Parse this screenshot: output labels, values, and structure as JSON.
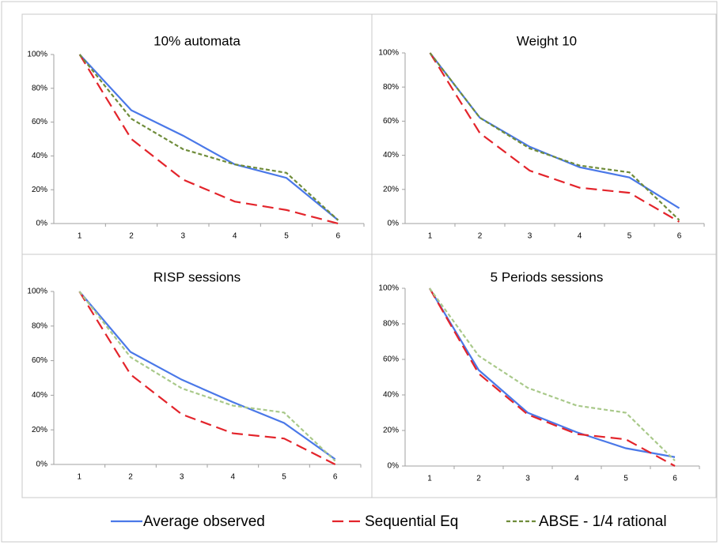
{
  "chart_data": [
    {
      "type": "line",
      "title": "10% automata",
      "categories": [
        "1",
        "2",
        "3",
        "4",
        "5",
        "6"
      ],
      "ylim": [
        0,
        100
      ],
      "yticks": [
        {
          "value": 0,
          "label": "0%"
        },
        {
          "value": 20,
          "label": "20%"
        },
        {
          "value": 40,
          "label": "40%"
        },
        {
          "value": 60,
          "label": "60%"
        },
        {
          "value": 80,
          "label": "80%"
        },
        {
          "value": 100,
          "label": "100%"
        }
      ],
      "grid": false,
      "series": [
        {
          "name": "Average observed",
          "color": "#4a78e8",
          "style": "solid",
          "values": [
            100,
            67,
            52,
            35,
            27,
            2
          ]
        },
        {
          "name": "Sequential Eq",
          "color": "#e3242b",
          "style": "dashed",
          "values": [
            100,
            50,
            26,
            13,
            8,
            0
          ]
        },
        {
          "name": "ABSE - 1/4 rational",
          "color": "#6f8c3a",
          "style": "dotted",
          "values": [
            100,
            62,
            44,
            35,
            30,
            2
          ]
        }
      ]
    },
    {
      "type": "line",
      "title": "Weight 10",
      "categories": [
        "1",
        "2",
        "3",
        "4",
        "5",
        "6"
      ],
      "ylim": [
        0,
        100
      ],
      "yticks": [
        {
          "value": 0,
          "label": "0%"
        },
        {
          "value": 20,
          "label": "20%"
        },
        {
          "value": 40,
          "label": "40%"
        },
        {
          "value": 60,
          "label": "60%"
        },
        {
          "value": 80,
          "label": "80%"
        },
        {
          "value": 100,
          "label": "100%"
        }
      ],
      "grid": false,
      "series": [
        {
          "name": "Average observed",
          "color": "#4a78e8",
          "style": "solid",
          "values": [
            100,
            62,
            45,
            33,
            27,
            9
          ]
        },
        {
          "name": "Sequential Eq",
          "color": "#e3242b",
          "style": "dashed",
          "values": [
            100,
            53,
            31,
            21,
            18,
            1
          ]
        },
        {
          "name": "ABSE - 1/4 rational",
          "color": "#6f8c3a",
          "style": "dotted",
          "values": [
            100,
            62,
            44,
            34,
            30,
            2
          ]
        }
      ]
    },
    {
      "type": "line",
      "title": "RISP sessions",
      "categories": [
        "1",
        "2",
        "3",
        "4",
        "5",
        "6"
      ],
      "ylim": [
        0,
        100
      ],
      "yticks": [
        {
          "value": 0,
          "label": "0%"
        },
        {
          "value": 20,
          "label": "20%"
        },
        {
          "value": 40,
          "label": "40%"
        },
        {
          "value": 60,
          "label": "60%"
        },
        {
          "value": 80,
          "label": "80%"
        },
        {
          "value": 100,
          "label": "100%"
        }
      ],
      "grid": false,
      "series": [
        {
          "name": "Average observed",
          "color": "#4a78e8",
          "style": "solid",
          "values": [
            100,
            65,
            49,
            36,
            24,
            3
          ]
        },
        {
          "name": "Sequential Eq",
          "color": "#e3242b",
          "style": "dashed",
          "values": [
            100,
            52,
            29,
            18,
            15,
            0
          ]
        },
        {
          "name": "ABSE - 1/4 rational",
          "color": "#a9c98a",
          "style": "dotted",
          "values": [
            100,
            62,
            44,
            34,
            30,
            2
          ]
        }
      ]
    },
    {
      "type": "line",
      "title": "5 Periods sessions",
      "categories": [
        "1",
        "2",
        "3",
        "4",
        "5",
        "6"
      ],
      "ylim": [
        0,
        100
      ],
      "yticks": [
        {
          "value": 0,
          "label": "0%"
        },
        {
          "value": 20,
          "label": "20%"
        },
        {
          "value": 40,
          "label": "40%"
        },
        {
          "value": 60,
          "label": "60%"
        },
        {
          "value": 80,
          "label": "80%"
        },
        {
          "value": 100,
          "label": "100%"
        }
      ],
      "grid": false,
      "series": [
        {
          "name": "Average observed",
          "color": "#4a78e8",
          "style": "solid",
          "values": [
            100,
            54,
            30,
            19,
            10,
            5
          ]
        },
        {
          "name": "Sequential Eq",
          "color": "#e3242b",
          "style": "dashed",
          "values": [
            100,
            52,
            29,
            18,
            15,
            0
          ]
        },
        {
          "name": "ABSE - 1/4 rational",
          "color": "#a9c98a",
          "style": "dotted",
          "values": [
            100,
            62,
            44,
            34,
            30,
            3
          ]
        }
      ]
    }
  ]
}
